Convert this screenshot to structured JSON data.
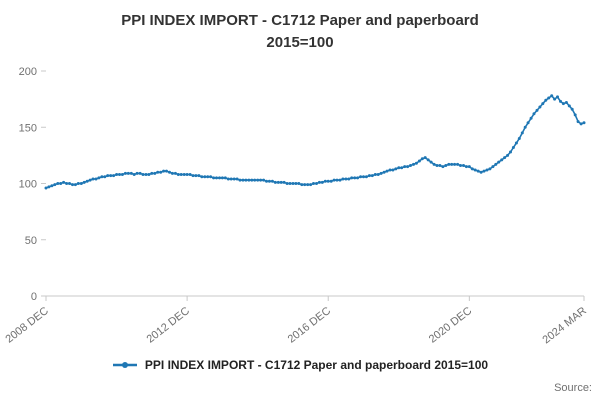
{
  "header": {
    "title_line1": "PPI INDEX IMPORT - C1712 Paper and paperboard",
    "title_line2": "2015=100"
  },
  "legend": {
    "label": "PPI INDEX IMPORT - C1712 Paper and paperboard 2015=100"
  },
  "footer": {
    "source_label": "Source:"
  },
  "colors": {
    "line": "#1f77b4",
    "axis": "#c8c8c8",
    "tick_text": "#707070"
  },
  "chart_data": {
    "type": "line",
    "title": "PPI INDEX IMPORT - C1712 Paper and paperboard 2015=100",
    "xlabel": "",
    "ylabel": "",
    "ylim": [
      0,
      200
    ],
    "y_ticks": [
      0,
      50,
      100,
      150,
      200
    ],
    "grid": false,
    "legend_position": "bottom",
    "x_start": "2008 DEC",
    "x_end": "2024 MAR",
    "frequency": "monthly",
    "x_tick_labels": [
      "2008 DEC",
      "2012 DEC",
      "2016 DEC",
      "2020 DEC",
      "2024 MAR"
    ],
    "x_tick_indices": [
      0,
      48,
      96,
      144,
      183
    ],
    "series": [
      {
        "name": "PPI INDEX IMPORT - C1712 Paper and paperboard 2015=100",
        "values": [
          96,
          97,
          98,
          99,
          100,
          100,
          101,
          100,
          100,
          99,
          99,
          100,
          100,
          101,
          102,
          103,
          104,
          104,
          105,
          106,
          106,
          107,
          107,
          107,
          108,
          108,
          108,
          109,
          109,
          109,
          108,
          109,
          109,
          108,
          108,
          108,
          109,
          109,
          110,
          110,
          111,
          111,
          110,
          109,
          109,
          108,
          108,
          108,
          108,
          108,
          107,
          107,
          107,
          106,
          106,
          106,
          106,
          105,
          105,
          105,
          105,
          105,
          104,
          104,
          104,
          104,
          103,
          103,
          103,
          103,
          103,
          103,
          103,
          103,
          103,
          102,
          102,
          102,
          101,
          101,
          101,
          101,
          100,
          100,
          100,
          100,
          100,
          99,
          99,
          99,
          99,
          100,
          100,
          101,
          101,
          102,
          102,
          102,
          103,
          103,
          103,
          104,
          104,
          104,
          105,
          105,
          105,
          106,
          106,
          106,
          107,
          107,
          108,
          108,
          109,
          110,
          111,
          112,
          112,
          113,
          114,
          114,
          115,
          115,
          116,
          117,
          118,
          120,
          122,
          123,
          121,
          119,
          117,
          116,
          116,
          115,
          116,
          117,
          117,
          117,
          117,
          116,
          116,
          115,
          115,
          113,
          112,
          111,
          110,
          111,
          112,
          113,
          115,
          117,
          119,
          121,
          123,
          125,
          128,
          132,
          136,
          140,
          145,
          150,
          154,
          158,
          162,
          165,
          168,
          171,
          174,
          176,
          178,
          175,
          177,
          173,
          171,
          172,
          169,
          166,
          161,
          155,
          153,
          154
        ]
      }
    ]
  }
}
